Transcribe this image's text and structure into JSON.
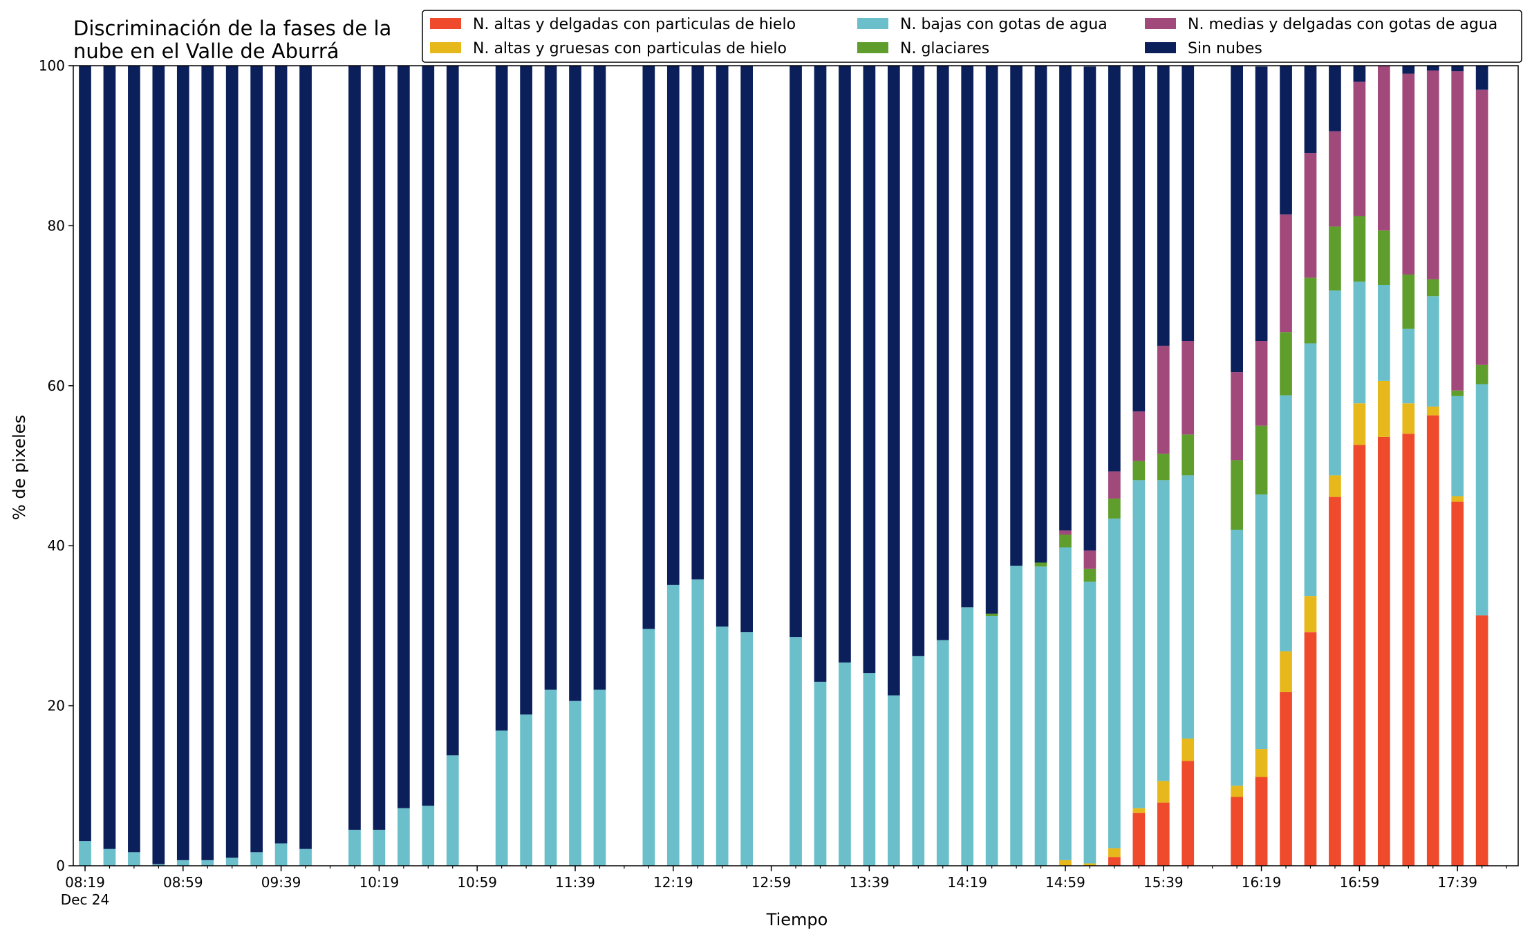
{
  "chart_data": {
    "type": "bar",
    "stacked": true,
    "title_lines": [
      "Discriminación de la fases de la",
      "nube en el Valle de Aburrá"
    ],
    "xlabel": "Tiempo",
    "ylabel": "% de pixeles",
    "ylim": [
      0,
      100
    ],
    "yticks": [
      0,
      20,
      40,
      60,
      80,
      100
    ],
    "xlim": [
      0,
      58.8
    ],
    "major_ticks": [
      {
        "pos": 0,
        "label": "08:19",
        "sublabel": "Dec 24"
      },
      {
        "pos": 4,
        "label": "08:59"
      },
      {
        "pos": 8,
        "label": "09:39"
      },
      {
        "pos": 12,
        "label": "10:19"
      },
      {
        "pos": 16,
        "label": "10:59"
      },
      {
        "pos": 20,
        "label": "11:39"
      },
      {
        "pos": 24,
        "label": "12:19"
      },
      {
        "pos": 28,
        "label": "12:59"
      },
      {
        "pos": 32,
        "label": "13:39"
      },
      {
        "pos": 36,
        "label": "14:19"
      },
      {
        "pos": 40,
        "label": "14:59"
      },
      {
        "pos": 44,
        "label": "15:39"
      },
      {
        "pos": 48,
        "label": "16:19"
      },
      {
        "pos": 52,
        "label": "16:59"
      },
      {
        "pos": 56,
        "label": "17:39"
      }
    ],
    "positions": [
      0,
      1,
      2,
      3,
      4,
      5,
      6,
      7,
      8,
      9,
      11,
      12,
      13,
      14,
      15,
      17,
      18,
      19,
      20,
      21,
      23,
      24,
      25,
      26,
      27,
      29,
      30,
      31,
      32,
      33,
      34,
      35,
      36,
      37,
      38,
      39,
      40,
      41,
      42,
      43,
      44,
      45,
      47,
      48,
      49,
      50,
      51,
      52,
      53,
      54,
      55,
      56,
      57
    ],
    "legend": {
      "placement": "top-right",
      "columns": 3
    },
    "series": [
      {
        "name": "N. altas y delgadas con particulas de hielo",
        "color": "#ef4a2b",
        "values": [
          0,
          0,
          0,
          0,
          0,
          0,
          0,
          0,
          0,
          0,
          0,
          0,
          0,
          0,
          0,
          0,
          0,
          0,
          0,
          0,
          0,
          0,
          0,
          0,
          0,
          0,
          0,
          0,
          0,
          0,
          0,
          0,
          0,
          0,
          0,
          0,
          0,
          0,
          1.1,
          6.6,
          7.9,
          13.1,
          8.6,
          11.1,
          21.7,
          29.2,
          46.1,
          52.6,
          53.6,
          54.0,
          56.3,
          45.5,
          31.3
        ]
      },
      {
        "name": "N. altas y gruesas con particulas de hielo",
        "color": "#e7b81b",
        "values": [
          0,
          0,
          0,
          0,
          0,
          0,
          0,
          0,
          0,
          0,
          0,
          0,
          0,
          0,
          0,
          0,
          0,
          0,
          0,
          0,
          0,
          0,
          0,
          0,
          0,
          0,
          0,
          0,
          0,
          0,
          0,
          0,
          0,
          0,
          0,
          0,
          0.7,
          0.3,
          1.1,
          0.6,
          2.7,
          2.8,
          1.4,
          3.5,
          5.1,
          4.5,
          2.7,
          5.2,
          7.0,
          3.8,
          1.1,
          0.7,
          0
        ]
      },
      {
        "name": "N. bajas con gotas de agua",
        "color": "#6abfcb",
        "values": [
          3.1,
          2.1,
          1.7,
          0.2,
          0.7,
          0.7,
          1.0,
          1.7,
          2.8,
          2.1,
          4.5,
          4.5,
          7.2,
          7.5,
          13.8,
          16.9,
          18.9,
          22.0,
          20.6,
          22.0,
          29.6,
          35.1,
          35.8,
          29.9,
          29.2,
          28.6,
          23.0,
          25.4,
          24.1,
          21.3,
          26.2,
          28.2,
          32.3,
          31.2,
          37.5,
          37.4,
          39.1,
          35.2,
          41.2,
          41.0,
          37.6,
          32.9,
          32.0,
          31.8,
          32.0,
          31.6,
          23.1,
          15.2,
          12.0,
          9.3,
          13.8,
          12.5,
          28.9
        ]
      },
      {
        "name": "N. glaciares",
        "color": "#5f9e2d",
        "values": [
          0,
          0,
          0,
          0,
          0,
          0,
          0,
          0,
          0,
          0,
          0,
          0,
          0,
          0,
          0,
          0,
          0,
          0,
          0,
          0,
          0,
          0,
          0,
          0,
          0,
          0,
          0,
          0,
          0,
          0,
          0,
          0,
          0,
          0.3,
          0,
          0.5,
          1.6,
          1.6,
          2.5,
          2.4,
          3.3,
          5.1,
          8.7,
          8.6,
          7.9,
          8.2,
          8.0,
          8.2,
          6.8,
          6.8,
          2.1,
          0.7,
          2.4
        ]
      },
      {
        "name": "N. medias y delgadas con gotas de agua",
        "color": "#a2497c",
        "values": [
          0,
          0,
          0,
          0,
          0,
          0,
          0,
          0,
          0,
          0,
          0,
          0,
          0,
          0,
          0,
          0,
          0,
          0,
          0,
          0,
          0,
          0,
          0,
          0,
          0,
          0,
          0,
          0,
          0,
          0,
          0,
          0,
          0,
          0,
          0,
          0,
          0.5,
          2.3,
          3.4,
          6.2,
          13.5,
          11.7,
          11.0,
          10.6,
          14.7,
          15.6,
          11.9,
          16.8,
          20.6,
          25.1,
          26.1,
          39.9,
          34.4
        ]
      },
      {
        "name": "Sin nubes",
        "color": "#0b1f5b",
        "values": [
          96.9,
          97.9,
          98.3,
          99.8,
          99.3,
          99.3,
          99.0,
          98.3,
          97.2,
          97.9,
          95.5,
          95.5,
          92.8,
          92.5,
          86.2,
          83.1,
          81.1,
          78.0,
          79.4,
          78.0,
          70.4,
          64.9,
          64.2,
          70.1,
          70.8,
          71.4,
          77.0,
          74.6,
          75.9,
          78.7,
          73.8,
          71.8,
          67.7,
          68.5,
          62.5,
          62.1,
          58.1,
          60.5,
          50.7,
          43.2,
          35.0,
          34.4,
          38.3,
          34.3,
          18.6,
          10.9,
          8.2,
          2.0,
          0,
          1.0,
          0.6,
          0.7,
          3.0
        ]
      }
    ]
  }
}
